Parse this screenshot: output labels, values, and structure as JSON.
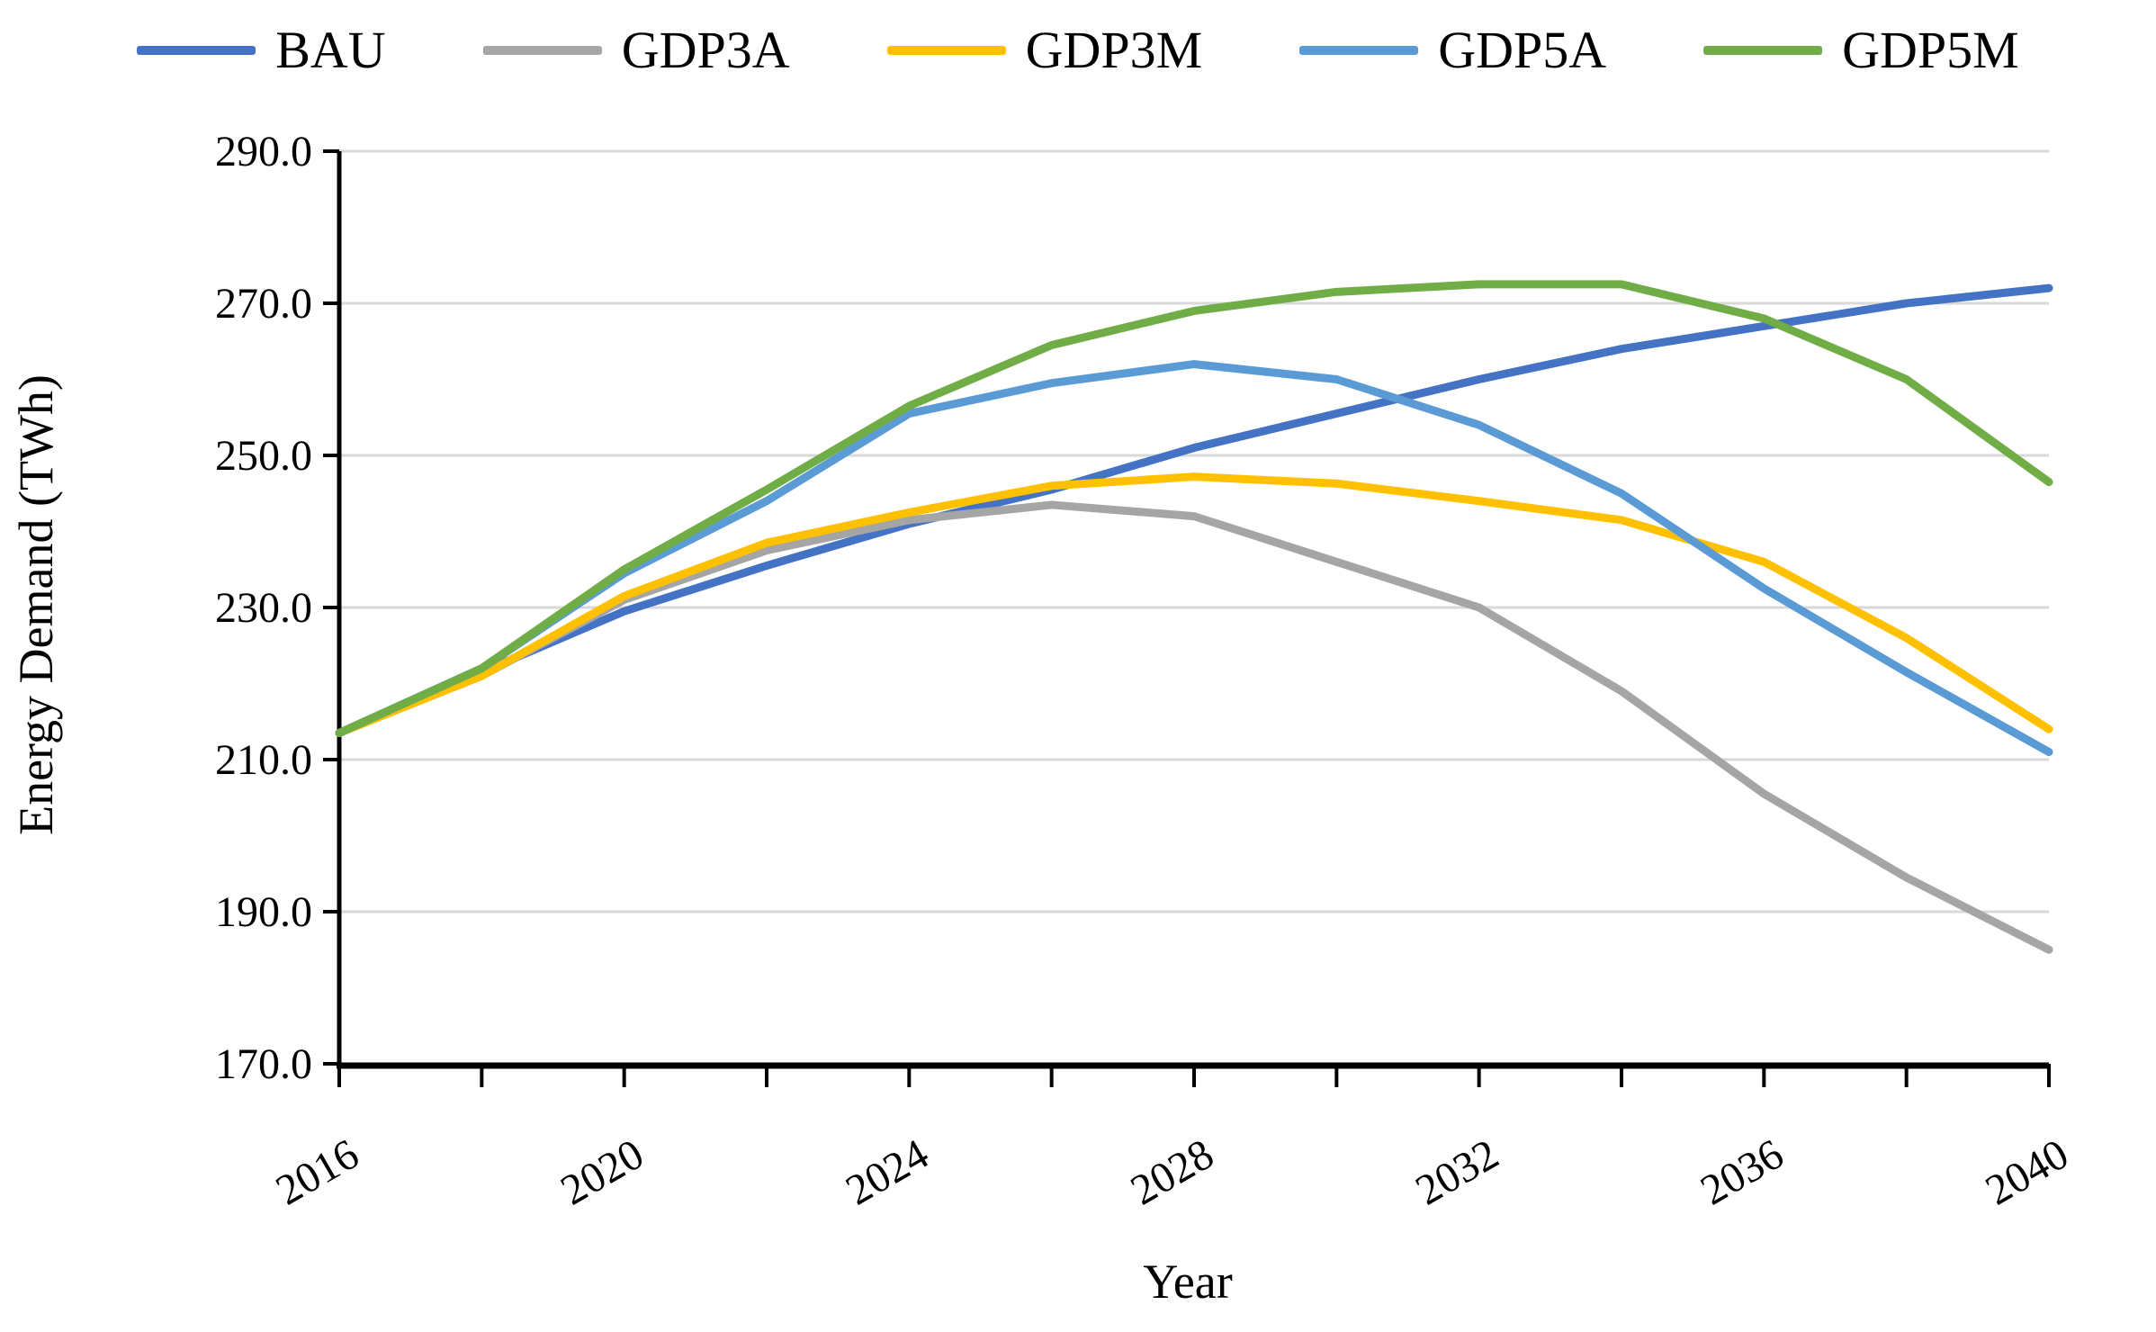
{
  "chart_data": {
    "type": "line",
    "title": "",
    "xlabel": "Year",
    "ylabel": "Energy Demand (TWh)",
    "units": "TWh",
    "x": [
      2016,
      2018,
      2020,
      2022,
      2024,
      2026,
      2028,
      2030,
      2032,
      2034,
      2036,
      2038,
      2040
    ],
    "xlim": [
      2016,
      2040
    ],
    "ylim": [
      170,
      290
    ],
    "x_tick_step_years": 2,
    "x_axis_labels": [
      "2016",
      "2020",
      "2024",
      "2028",
      "2032",
      "2036",
      "2040"
    ],
    "y_ticks": [
      170,
      190,
      210,
      230,
      250,
      270,
      290
    ],
    "y_tick_labels": [
      "170.0",
      "190.0",
      "210.0",
      "230.0",
      "250.0",
      "270.0",
      "290.0"
    ],
    "grid": "horizontal",
    "legend_position": "top",
    "grid_color": "#D9D9D9",
    "axis_color": "#000000",
    "series": [
      {
        "name": "BAU",
        "color": "#4472C4",
        "values": [
          213.5,
          221.5,
          229.5,
          235.5,
          241.0,
          245.5,
          251.0,
          255.5,
          260.0,
          264.0,
          267.0,
          270.0,
          272.0
        ]
      },
      {
        "name": "GDP3A",
        "color": "#A5A5A5",
        "values": [
          213.5,
          221.0,
          231.0,
          237.5,
          241.5,
          243.5,
          242.0,
          236.0,
          230.0,
          219.0,
          205.5,
          194.5,
          185.0
        ]
      },
      {
        "name": "GDP3M",
        "color": "#FFC000",
        "values": [
          213.5,
          221.0,
          231.5,
          238.5,
          242.5,
          246.0,
          247.2,
          246.3,
          244.0,
          241.5,
          236.0,
          226.0,
          214.0
        ]
      },
      {
        "name": "GDP5A",
        "color": "#5B9BD5",
        "values": [
          213.5,
          222.0,
          234.5,
          244.0,
          255.5,
          259.5,
          262.0,
          260.0,
          254.0,
          245.0,
          232.5,
          221.5,
          211.0
        ]
      },
      {
        "name": "GDP5M",
        "color": "#70AD47",
        "values": [
          213.5,
          222.0,
          235.0,
          245.5,
          256.5,
          264.5,
          269.0,
          271.5,
          272.5,
          272.5,
          268.0,
          260.0,
          246.5
        ]
      }
    ]
  }
}
